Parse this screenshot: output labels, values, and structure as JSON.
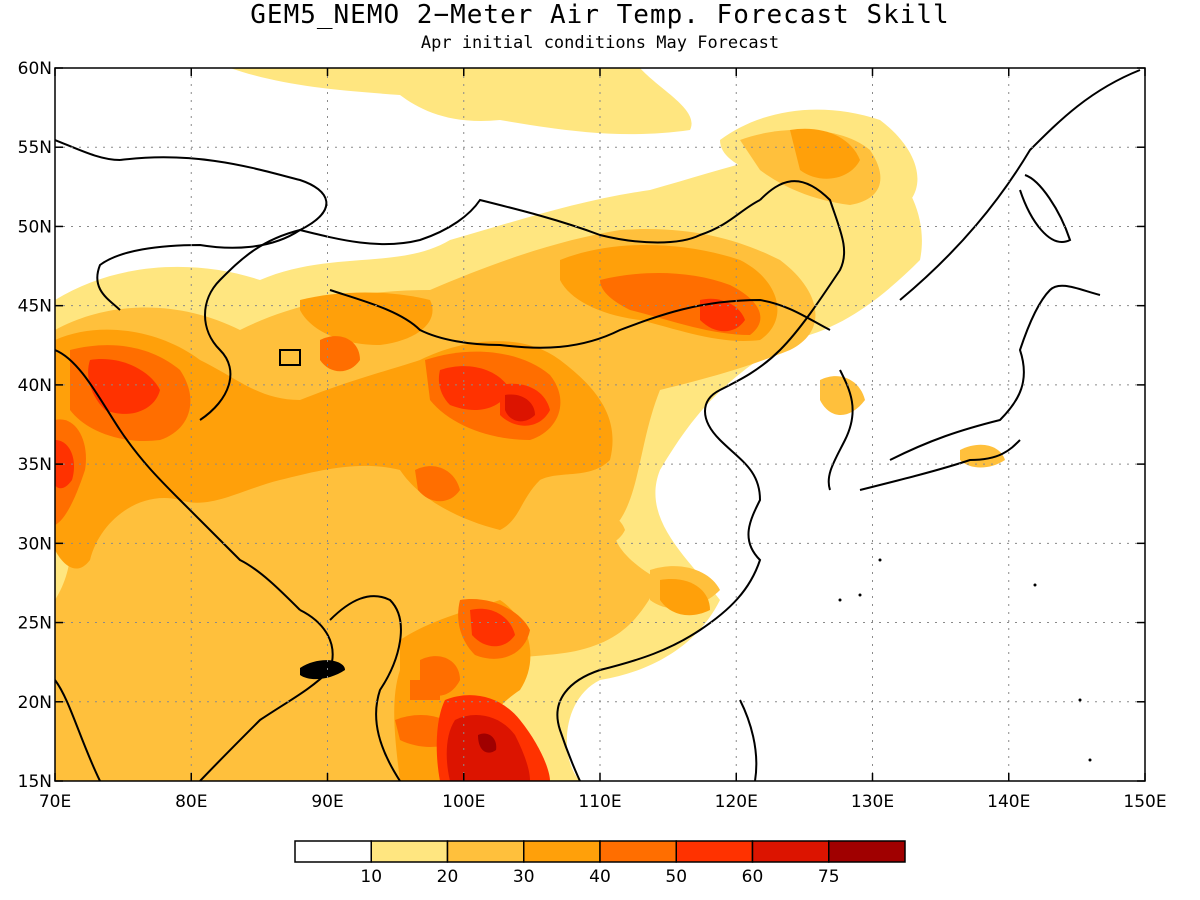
{
  "title": "GEM5_NEMO 2−Meter Air Temp. Forecast Skill",
  "subtitle": "Apr initial conditions  May Forecast",
  "map": {
    "lon_range": [
      70,
      150
    ],
    "lat_range": [
      15,
      60
    ],
    "lon_ticks": [
      "70E",
      "80E",
      "90E",
      "100E",
      "110E",
      "120E",
      "130E",
      "140E",
      "150E"
    ],
    "lat_ticks": [
      "15N",
      "20N",
      "25N",
      "30N",
      "35N",
      "40N",
      "45N",
      "50N",
      "55N",
      "60N"
    ],
    "grid": "dotted"
  },
  "legend": {
    "levels": [
      "10",
      "20",
      "30",
      "40",
      "50",
      "60",
      "75"
    ],
    "colors": [
      "#ffffff",
      "#ffe680",
      "#ffc03c",
      "#ffa00a",
      "#ff6e00",
      "#ff3200",
      "#dc1400",
      "#a00000"
    ]
  }
}
